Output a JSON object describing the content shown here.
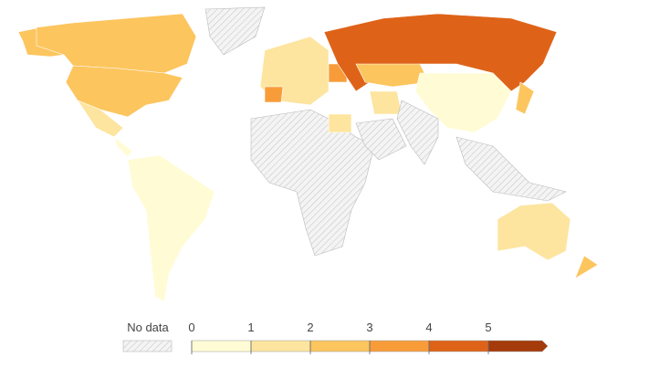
{
  "legend": {
    "no_data_label": "No data",
    "ticks": [
      0,
      1,
      2,
      3,
      4,
      5
    ],
    "colors": [
      "#fffcd5",
      "#fde5a0",
      "#fcc55e",
      "#f89c3a",
      "#de6318",
      "#a53a0a"
    ]
  }
}
